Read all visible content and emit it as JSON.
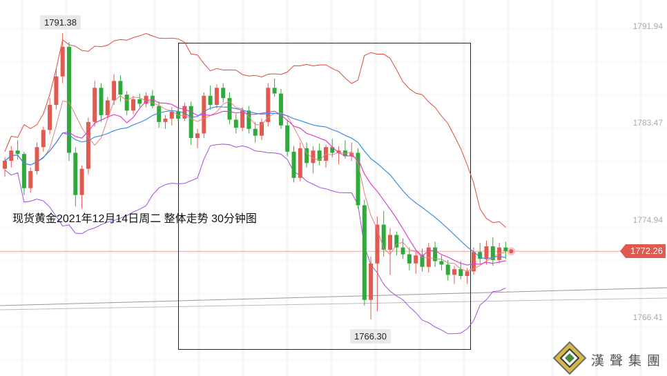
{
  "chart_data": {
    "type": "candlestick",
    "title": "现货黄金2021年12月14日周二 整体走势 30分钟图",
    "ylim": [
      1763,
      1796
    ],
    "y_ticks": [
      {
        "value": 1791.94,
        "label": "1791.94"
      },
      {
        "value": 1783.47,
        "label": "1783.47"
      },
      {
        "value": 1774.94,
        "label": "1774.94"
      },
      {
        "value": 1766.41,
        "label": "1766.41"
      }
    ],
    "current_price": {
      "value": 1772.26,
      "label": "1772.26"
    },
    "high_annotation": {
      "value": 1791.38,
      "label": "1791.38"
    },
    "low_annotation": {
      "value": 1766.3,
      "label": "1766.30"
    },
    "candles": [
      [
        1779.5,
        1780.5,
        1778.8,
        1780.2
      ],
      [
        1780.2,
        1781.5,
        1779.6,
        1781.1
      ],
      [
        1781.1,
        1782.0,
        1780.3,
        1780.8
      ],
      [
        1780.8,
        1781.0,
        1777.2,
        1777.8
      ],
      [
        1777.8,
        1779.6,
        1777.4,
        1779.3
      ],
      [
        1779.3,
        1781.8,
        1779.0,
        1781.4
      ],
      [
        1781.4,
        1783.2,
        1781.0,
        1782.9
      ],
      [
        1782.9,
        1785.7,
        1782.5,
        1785.1
      ],
      [
        1785.1,
        1788.2,
        1784.7,
        1787.6
      ],
      [
        1787.6,
        1791.4,
        1787.0,
        1790.2
      ],
      [
        1790.2,
        1790.6,
        1780.2,
        1780.9
      ],
      [
        1780.9,
        1781.4,
        1776.2,
        1777.2
      ],
      [
        1777.2,
        1779.8,
        1776.0,
        1779.5
      ],
      [
        1779.5,
        1784.0,
        1779.0,
        1783.6
      ],
      [
        1783.6,
        1787.2,
        1783.2,
        1786.6
      ],
      [
        1786.6,
        1787.0,
        1783.6,
        1784.2
      ],
      [
        1784.2,
        1785.8,
        1783.9,
        1785.5
      ],
      [
        1785.5,
        1787.8,
        1785.1,
        1787.2
      ],
      [
        1787.2,
        1787.7,
        1785.4,
        1786.0
      ],
      [
        1786.0,
        1786.3,
        1784.2,
        1784.6
      ],
      [
        1784.6,
        1785.9,
        1784.3,
        1785.6
      ],
      [
        1785.6,
        1786.1,
        1784.9,
        1785.2
      ],
      [
        1785.2,
        1786.2,
        1784.9,
        1785.9
      ],
      [
        1785.9,
        1786.4,
        1784.8,
        1785.0
      ],
      [
        1785.0,
        1785.4,
        1783.1,
        1783.6
      ],
      [
        1783.6,
        1784.2,
        1783.0,
        1783.9
      ],
      [
        1783.9,
        1784.9,
        1783.3,
        1784.5
      ],
      [
        1784.5,
        1784.8,
        1783.6,
        1783.9
      ],
      [
        1783.9,
        1785.3,
        1783.7,
        1785.0
      ],
      [
        1785.0,
        1785.4,
        1781.6,
        1782.2
      ],
      [
        1782.2,
        1783.0,
        1781.3,
        1782.6
      ],
      [
        1782.6,
        1786.2,
        1782.2,
        1785.9
      ],
      [
        1785.9,
        1786.8,
        1784.7,
        1785.1
      ],
      [
        1785.1,
        1786.9,
        1784.8,
        1786.6
      ],
      [
        1786.6,
        1787.0,
        1785.3,
        1785.7
      ],
      [
        1785.7,
        1786.2,
        1783.4,
        1783.8
      ],
      [
        1783.8,
        1784.3,
        1782.6,
        1783.1
      ],
      [
        1783.1,
        1784.9,
        1782.8,
        1784.6
      ],
      [
        1784.6,
        1785.0,
        1782.6,
        1783.0
      ],
      [
        1783.0,
        1783.6,
        1781.8,
        1782.4
      ],
      [
        1782.4,
        1783.9,
        1782.0,
        1783.6
      ],
      [
        1783.6,
        1787.0,
        1783.2,
        1786.6
      ],
      [
        1786.6,
        1787.4,
        1785.8,
        1786.1
      ],
      [
        1786.1,
        1786.5,
        1783.0,
        1783.3
      ],
      [
        1783.3,
        1783.8,
        1780.6,
        1781.0
      ],
      [
        1781.0,
        1781.5,
        1778.3,
        1778.7
      ],
      [
        1778.7,
        1781.8,
        1778.4,
        1781.3
      ],
      [
        1781.3,
        1781.8,
        1779.6,
        1780.0
      ],
      [
        1780.0,
        1781.5,
        1779.1,
        1781.1
      ],
      [
        1781.1,
        1781.7,
        1779.8,
        1780.2
      ],
      [
        1780.2,
        1781.6,
        1779.6,
        1781.4
      ],
      [
        1781.4,
        1782.1,
        1780.5,
        1780.9
      ],
      [
        1780.9,
        1781.5,
        1779.9,
        1781.1
      ],
      [
        1781.1,
        1782.0,
        1780.4,
        1780.6
      ],
      [
        1780.6,
        1781.8,
        1780.2,
        1780.9
      ],
      [
        1780.9,
        1781.3,
        1776.0,
        1776.3
      ],
      [
        1776.3,
        1776.8,
        1767.5,
        1768.0
      ],
      [
        1768.0,
        1771.8,
        1766.3,
        1771.2
      ],
      [
        1771.2,
        1775.3,
        1767.0,
        1774.6
      ],
      [
        1774.6,
        1775.8,
        1771.8,
        1772.4
      ],
      [
        1772.4,
        1774.3,
        1770.2,
        1773.7
      ],
      [
        1773.7,
        1774.0,
        1771.9,
        1772.6
      ],
      [
        1772.6,
        1773.4,
        1771.6,
        1772.0
      ],
      [
        1772.0,
        1772.6,
        1770.6,
        1771.2
      ],
      [
        1771.2,
        1772.3,
        1770.3,
        1771.9
      ],
      [
        1771.9,
        1772.5,
        1770.5,
        1770.9
      ],
      [
        1770.9,
        1773.0,
        1770.4,
        1772.6
      ],
      [
        1772.6,
        1773.1,
        1770.9,
        1771.4
      ],
      [
        1771.4,
        1771.9,
        1770.6,
        1771.1
      ],
      [
        1771.1,
        1771.5,
        1769.7,
        1770.2
      ],
      [
        1770.2,
        1771.0,
        1769.4,
        1770.7
      ],
      [
        1770.7,
        1771.4,
        1769.8,
        1770.1
      ],
      [
        1770.1,
        1770.8,
        1769.4,
        1770.5
      ],
      [
        1770.5,
        1772.6,
        1770.2,
        1772.2
      ],
      [
        1772.2,
        1773.0,
        1771.2,
        1771.6
      ],
      [
        1771.6,
        1773.2,
        1771.1,
        1772.7
      ],
      [
        1772.7,
        1773.5,
        1771.0,
        1771.5
      ],
      [
        1771.5,
        1773.0,
        1771.2,
        1772.6
      ],
      [
        1772.6,
        1773.1,
        1771.6,
        1772.26
      ]
    ],
    "colors": {
      "up": "#e15a4f",
      "down": "#2eaa3a",
      "ma_fast": "#e8817a",
      "ma_mid": "#e040c8",
      "ma_slow": "#3d8de0",
      "band_upper": "#e04a3a",
      "band_lower": "#a050e0",
      "price_line": "#f0a0a0",
      "trend_line": "#999999"
    }
  },
  "brand": {
    "name": "漢聲集團"
  }
}
